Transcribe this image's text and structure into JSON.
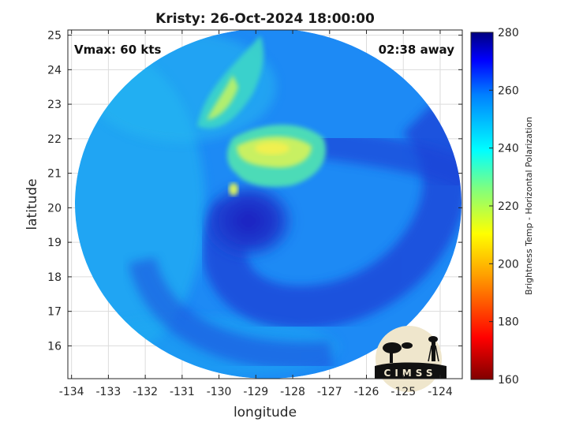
{
  "chart_data": {
    "type": "heatmap",
    "title": "Kristy: 26-Oct-2024 18:00:00",
    "xlabel": "longitude",
    "ylabel": "latitude",
    "xlim": [
      -134.1,
      -123.4
    ],
    "ylim": [
      15.05,
      25.15
    ],
    "x_ticks": [
      -134,
      -133,
      -132,
      -131,
      -130,
      -129,
      -128,
      -127,
      -126,
      -125,
      -124
    ],
    "y_ticks": [
      16,
      17,
      18,
      19,
      20,
      21,
      22,
      23,
      24,
      25
    ],
    "grid": true,
    "colorbar": {
      "label": "Brightness Temp - Horizontal Polarization",
      "range": [
        160,
        280
      ],
      "ticks": [
        160,
        180,
        200,
        220,
        240,
        260,
        280
      ],
      "colormap": "jet"
    },
    "storm_center": {
      "lon": -129.5,
      "lat": 20.0
    },
    "annotations": {
      "top_left": "Vmax: 60 kts",
      "top_right": "02:38 away"
    },
    "logo_text": "CIMSS"
  }
}
